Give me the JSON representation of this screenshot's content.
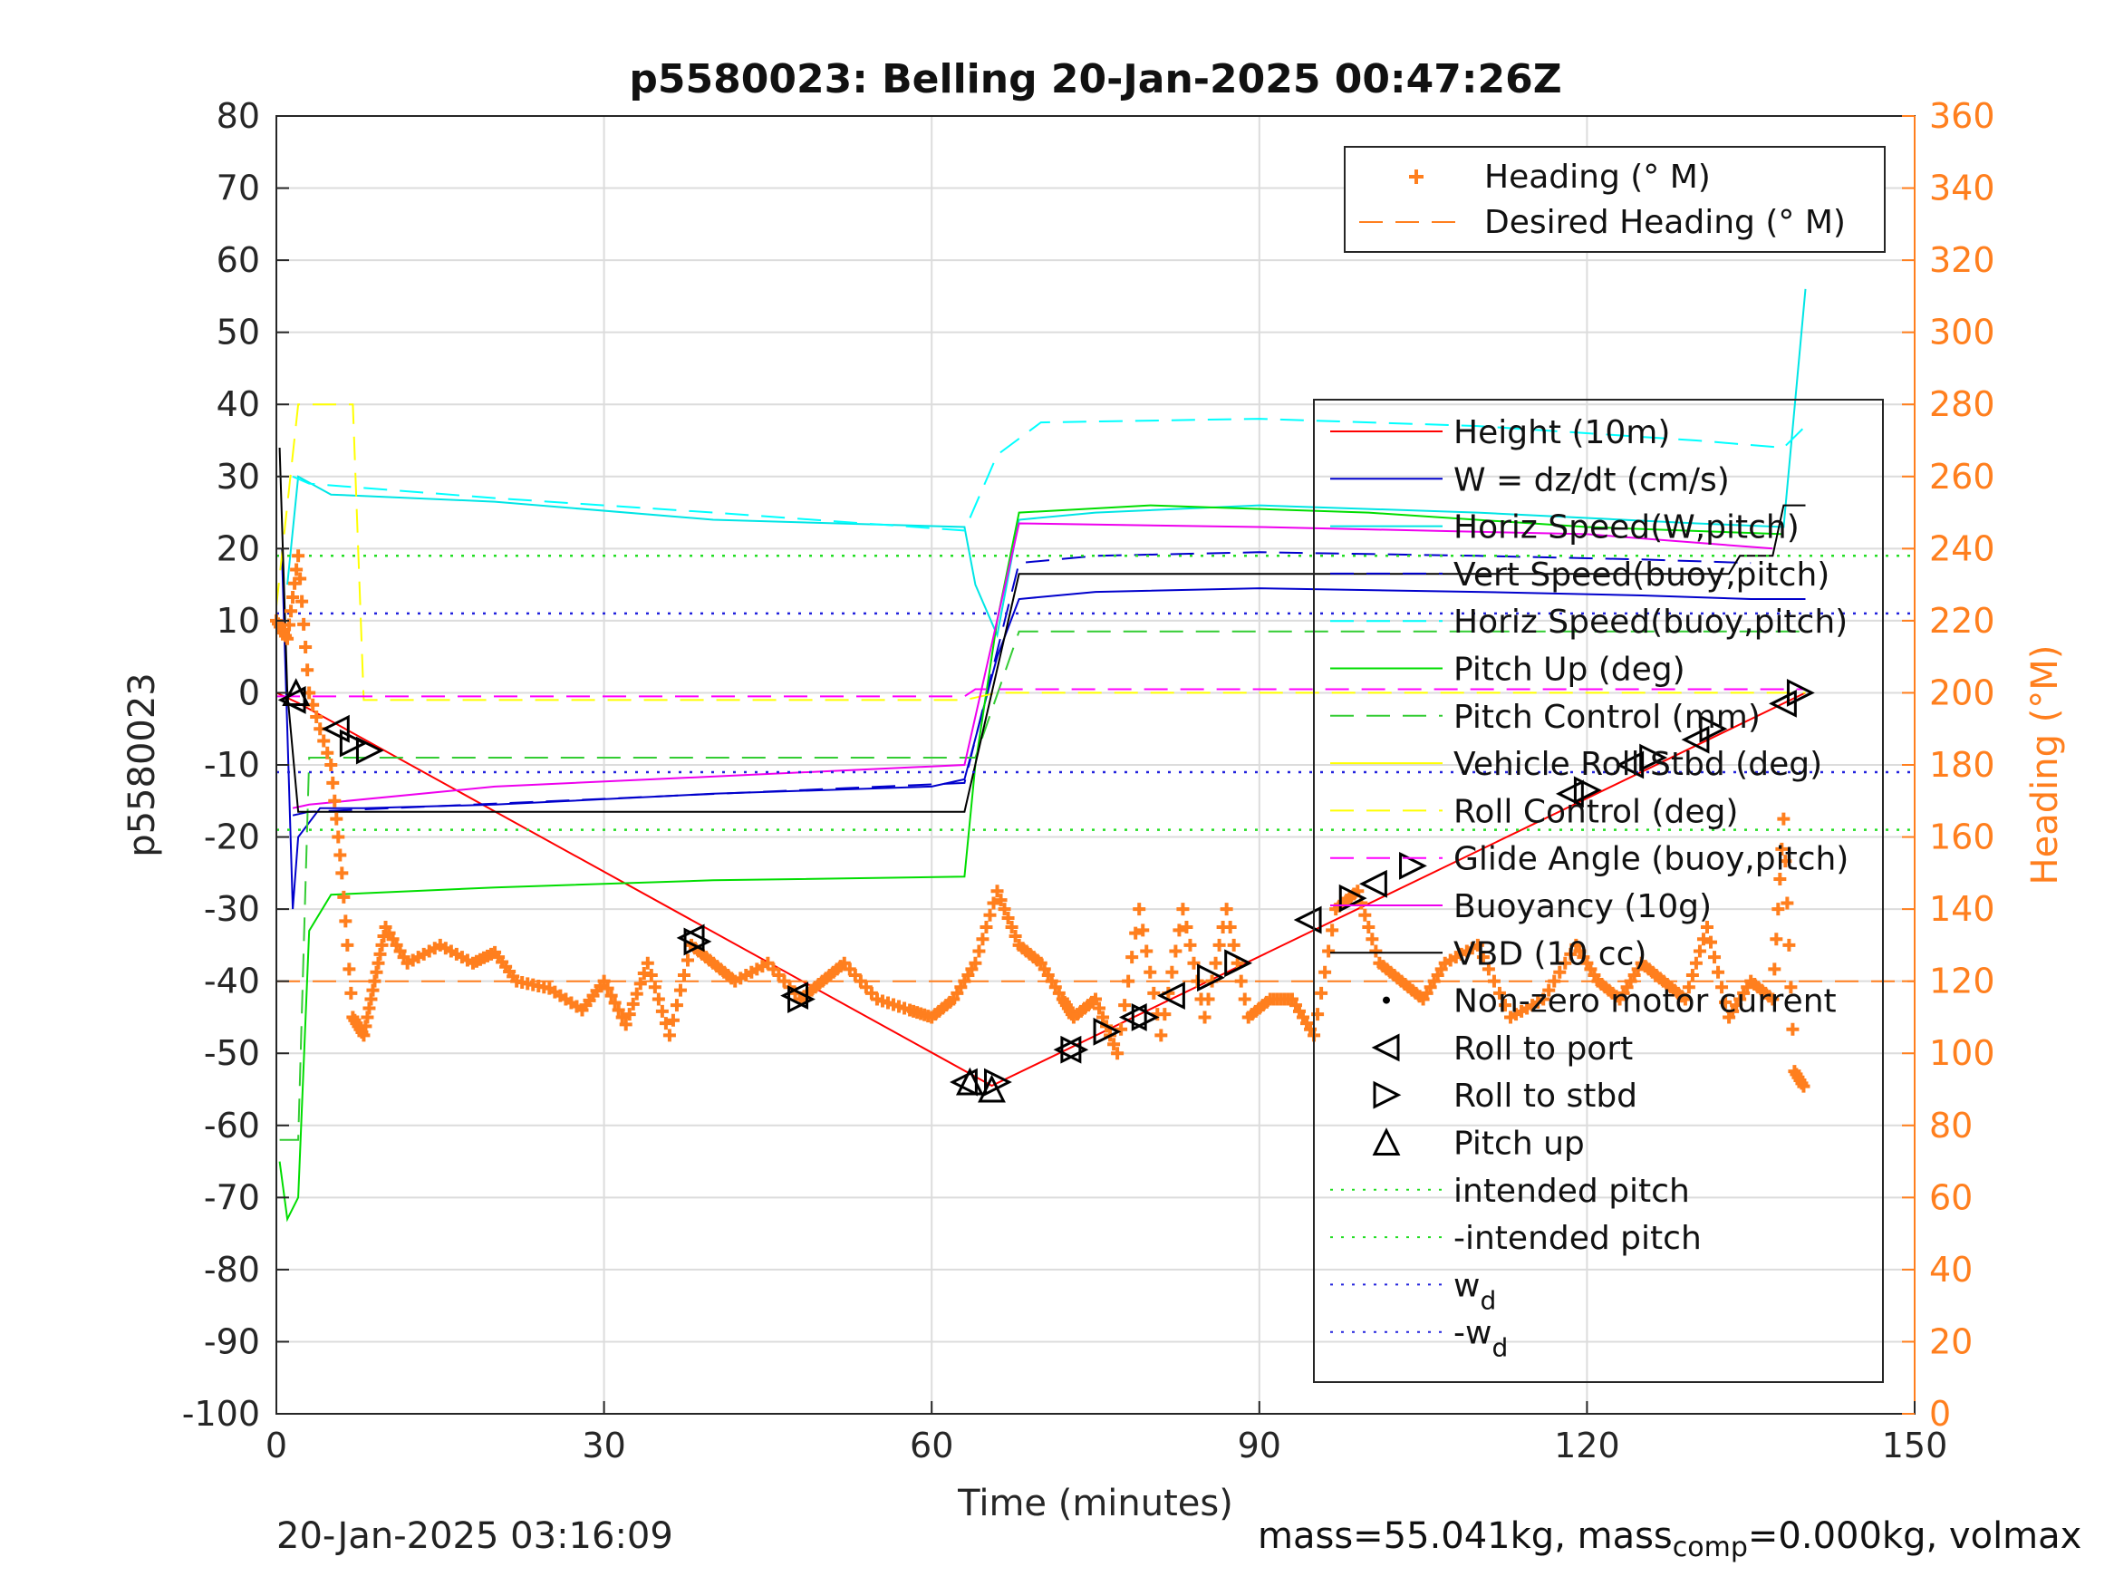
{
  "chart_data": {
    "type": "line",
    "title": "p5580023: Belling 20-Jan-2025 00:47:26Z",
    "xlabel": "Time (minutes)",
    "ylabel": "p5580023",
    "y2label": "Heading (°M)",
    "xlim": [
      0,
      150
    ],
    "ylim": [
      -100,
      80
    ],
    "y2lim": [
      0,
      360
    ],
    "xticks": [
      0,
      30,
      60,
      90,
      120,
      150
    ],
    "yticks": [
      80,
      70,
      60,
      50,
      40,
      30,
      20,
      10,
      0,
      -10,
      -20,
      -30,
      -40,
      -50,
      -60,
      -70,
      -80,
      -90,
      -100
    ],
    "y2ticks": [
      360,
      340,
      320,
      300,
      280,
      260,
      240,
      220,
      200,
      180,
      160,
      140,
      120,
      100,
      80,
      60,
      40,
      20,
      0
    ],
    "grid": true,
    "legend_top": {
      "placement": "top-right",
      "entries": [
        "Heading (° M)",
        "Desired Heading (° M)"
      ]
    },
    "legend_main": {
      "placement": "right",
      "entries": [
        "Height (10m)",
        "W = dz/dt (cm/s)",
        "Horiz Speed(W,pitch)",
        "Vert Speed(buoy,pitch)",
        "Horiz Speed(buoy,pitch)",
        "Pitch Up (deg)",
        "Pitch Control (mm)",
        "Vehicle Roll Stbd (deg)",
        "Roll Control (deg)",
        "Glide Angle (buoy,pitch)",
        "Buoyancy (10g)",
        "VBD (10 cc)",
        "Non-zero motor current",
        "Roll to port",
        "Roll to stbd",
        "Pitch up",
        "intended pitch",
        "-intended pitch",
        "w",
        "-w"
      ],
      "subscript": "d"
    },
    "colors": {
      "height": "#ff0000",
      "w": "#0000cc",
      "horiz_w": "#00e5e5",
      "vert_buoy": "#0000cc",
      "horiz_buoy": "#00ffff",
      "pitch": "#00dd00",
      "pitch_control": "#33cc33",
      "roll": "#ffff00",
      "roll_control": "#ffff00",
      "glide": "#ff00ff",
      "buoyancy": "#ee00ee",
      "vbd": "#000000",
      "heading": "#ff7f1e",
      "desired_heading": "#ff7f1e",
      "intended": "#22dd22",
      "wd": "#2222dd"
    },
    "series": [
      {
        "name": "Height (10m)",
        "x": [
          0,
          2,
          65.5,
          140
        ],
        "y": [
          0,
          -1.4,
          -54.5,
          0
        ]
      },
      {
        "name": "W = dz/dt (cm/s)",
        "x": [
          0.5,
          1.5,
          2,
          4,
          8,
          20,
          40,
          60,
          63,
          66,
          68,
          75,
          90,
          110,
          125,
          135,
          140
        ],
        "y": [
          20,
          -30,
          -20,
          -16,
          -16,
          -15.5,
          -14,
          -13,
          -12,
          5,
          13,
          14,
          14.5,
          14,
          13.5,
          13,
          13
        ]
      },
      {
        "name": "Horiz Speed(W,pitch)",
        "x": [
          1,
          2,
          5,
          20,
          40,
          63,
          64,
          66,
          68,
          75,
          90,
          110,
          130,
          138,
          140
        ],
        "y": [
          15,
          30,
          27.5,
          26.5,
          24,
          23,
          15,
          8,
          24,
          25,
          26,
          25,
          23.5,
          23,
          56
        ]
      },
      {
        "name": "Vert Speed(buoy,pitch)",
        "x": [
          1.5,
          3,
          63,
          68,
          75,
          90,
          110,
          125,
          135
        ],
        "y": [
          -17,
          -16.5,
          -12.5,
          18,
          19,
          19.5,
          19,
          18.5,
          18
        ]
      },
      {
        "name": "Horiz Speed(buoy,pitch)",
        "x": [
          1.5,
          3,
          20,
          40,
          63,
          66,
          70,
          90,
          110,
          130,
          138,
          140
        ],
        "y": [
          30,
          29,
          27,
          25,
          22.5,
          33,
          37.5,
          38,
          37,
          35,
          34,
          37
        ]
      },
      {
        "name": "Pitch Up (deg)",
        "x": [
          0.3,
          1,
          2,
          3,
          5,
          20,
          40,
          63,
          64,
          66,
          68,
          80,
          100,
          120,
          138
        ],
        "y": [
          -65,
          -73,
          -70,
          -33,
          -28,
          -27,
          -26,
          -25.5,
          -10,
          10,
          25,
          26,
          25,
          23,
          22
        ]
      },
      {
        "name": "Pitch Control (mm)",
        "x": [
          0.3,
          2,
          3,
          63,
          64,
          68,
          80,
          90,
          100,
          120,
          140
        ],
        "y": [
          -62,
          -62,
          -9,
          -9,
          -9,
          8.5,
          8.5,
          8.5,
          8.5,
          8.5,
          8.5
        ]
      },
      {
        "name": "Roll Control (deg)",
        "x": [
          0,
          2,
          7,
          8,
          63,
          66,
          68,
          90,
          120,
          140
        ],
        "y": [
          12,
          40,
          40,
          -1,
          -1,
          0,
          0,
          0,
          0,
          0
        ]
      },
      {
        "name": "Glide Angle (buoy,pitch)",
        "x": [
          0,
          63,
          64,
          140
        ],
        "y": [
          -0.5,
          -0.5,
          0.5,
          0.5
        ]
      },
      {
        "name": "Buoyancy (10g)",
        "x": [
          1.5,
          3,
          20,
          63,
          68,
          90,
          120,
          137
        ],
        "y": [
          -16,
          -15.5,
          -13,
          -10,
          23.5,
          23,
          22,
          20
        ]
      },
      {
        "name": "VBD (10 cc)",
        "x": [
          0.3,
          1,
          2,
          3,
          63,
          68,
          120,
          133,
          134,
          137,
          138,
          140
        ],
        "y": [
          34,
          0,
          -16.5,
          -16.5,
          -16.5,
          16.5,
          16.5,
          16.5,
          19,
          19,
          26,
          26
        ]
      },
      {
        "name": "intended pitch",
        "x": [
          0,
          150
        ],
        "y": [
          19,
          19
        ]
      },
      {
        "name": "-intended pitch",
        "x": [
          0,
          150
        ],
        "y": [
          -19,
          -19
        ]
      },
      {
        "name": "w_d",
        "x": [
          0,
          150
        ],
        "y": [
          11,
          11
        ]
      },
      {
        "name": "-w_d",
        "x": [
          0,
          150
        ],
        "y": [
          -11,
          -11
        ]
      },
      {
        "name": "Desired Heading (° M)",
        "axis": "right",
        "x": [
          0,
          150
        ],
        "y": [
          120,
          120
        ]
      },
      {
        "name": "Heading (° M)",
        "axis": "right",
        "x": [
          0,
          1,
          2,
          3,
          5,
          6,
          7,
          8,
          9,
          10,
          12,
          15,
          18,
          20,
          22,
          25,
          28,
          30,
          32,
          34,
          36,
          38,
          40,
          42,
          45,
          48,
          50,
          52,
          55,
          58,
          60,
          62,
          64,
          66,
          68,
          70,
          72,
          73,
          75,
          77,
          79,
          81,
          83,
          85,
          87,
          89,
          91,
          93,
          95,
          97,
          99,
          101,
          103,
          105,
          107,
          110,
          113,
          116,
          119,
          121,
          123,
          125,
          127,
          129,
          131,
          133,
          135,
          137,
          138,
          139,
          140
        ],
        "y": [
          220,
          215,
          238,
          200,
          180,
          150,
          110,
          105,
          120,
          135,
          125,
          130,
          125,
          128,
          120,
          118,
          112,
          120,
          108,
          125,
          105,
          130,
          125,
          120,
          125,
          115,
          120,
          125,
          115,
          112,
          110,
          115,
          125,
          145,
          130,
          125,
          115,
          110,
          115,
          100,
          140,
          105,
          140,
          110,
          140,
          110,
          115,
          115,
          105,
          140,
          145,
          125,
          120,
          115,
          125,
          130,
          110,
          115,
          130,
          120,
          115,
          125,
          120,
          115,
          135,
          110,
          120,
          115,
          165,
          95,
          90
        ]
      }
    ],
    "markers": {
      "roll_to_port": [
        [
          1.5,
          -1
        ],
        [
          5.5,
          -5
        ],
        [
          38,
          -34
        ],
        [
          47.5,
          -42
        ],
        [
          63,
          -54
        ],
        [
          72.5,
          -49.5
        ],
        [
          78.5,
          -45
        ],
        [
          82,
          -42
        ],
        [
          94.5,
          -31.5
        ],
        [
          100.5,
          -26.5
        ],
        [
          118.5,
          -14
        ],
        [
          124,
          -10
        ],
        [
          130,
          -6.5
        ],
        [
          138,
          -1.5
        ]
      ],
      "roll_to_stbd": [
        [
          7,
          -7
        ],
        [
          8.5,
          -8
        ],
        [
          38.5,
          -34.5
        ],
        [
          48,
          -42.5
        ],
        [
          66,
          -54
        ],
        [
          73,
          -49.5
        ],
        [
          76,
          -47
        ],
        [
          79.5,
          -45
        ],
        [
          85.5,
          -39.5
        ],
        [
          88,
          -37.5
        ],
        [
          98.5,
          -28.5
        ],
        [
          104,
          -24
        ],
        [
          120,
          -13.5
        ],
        [
          126,
          -9
        ],
        [
          131.5,
          -5
        ],
        [
          139.5,
          0
        ]
      ],
      "pitch_up": [
        [
          1.8,
          0
        ],
        [
          63.5,
          -54
        ],
        [
          65.5,
          -55
        ]
      ]
    }
  },
  "footer": {
    "timestamp": "20-Jan-2025 03:16:09",
    "mass_text": "mass=55.041kg, mass",
    "mass_sub": "comp",
    "mass_rest": "=0.000kg, volmax"
  }
}
